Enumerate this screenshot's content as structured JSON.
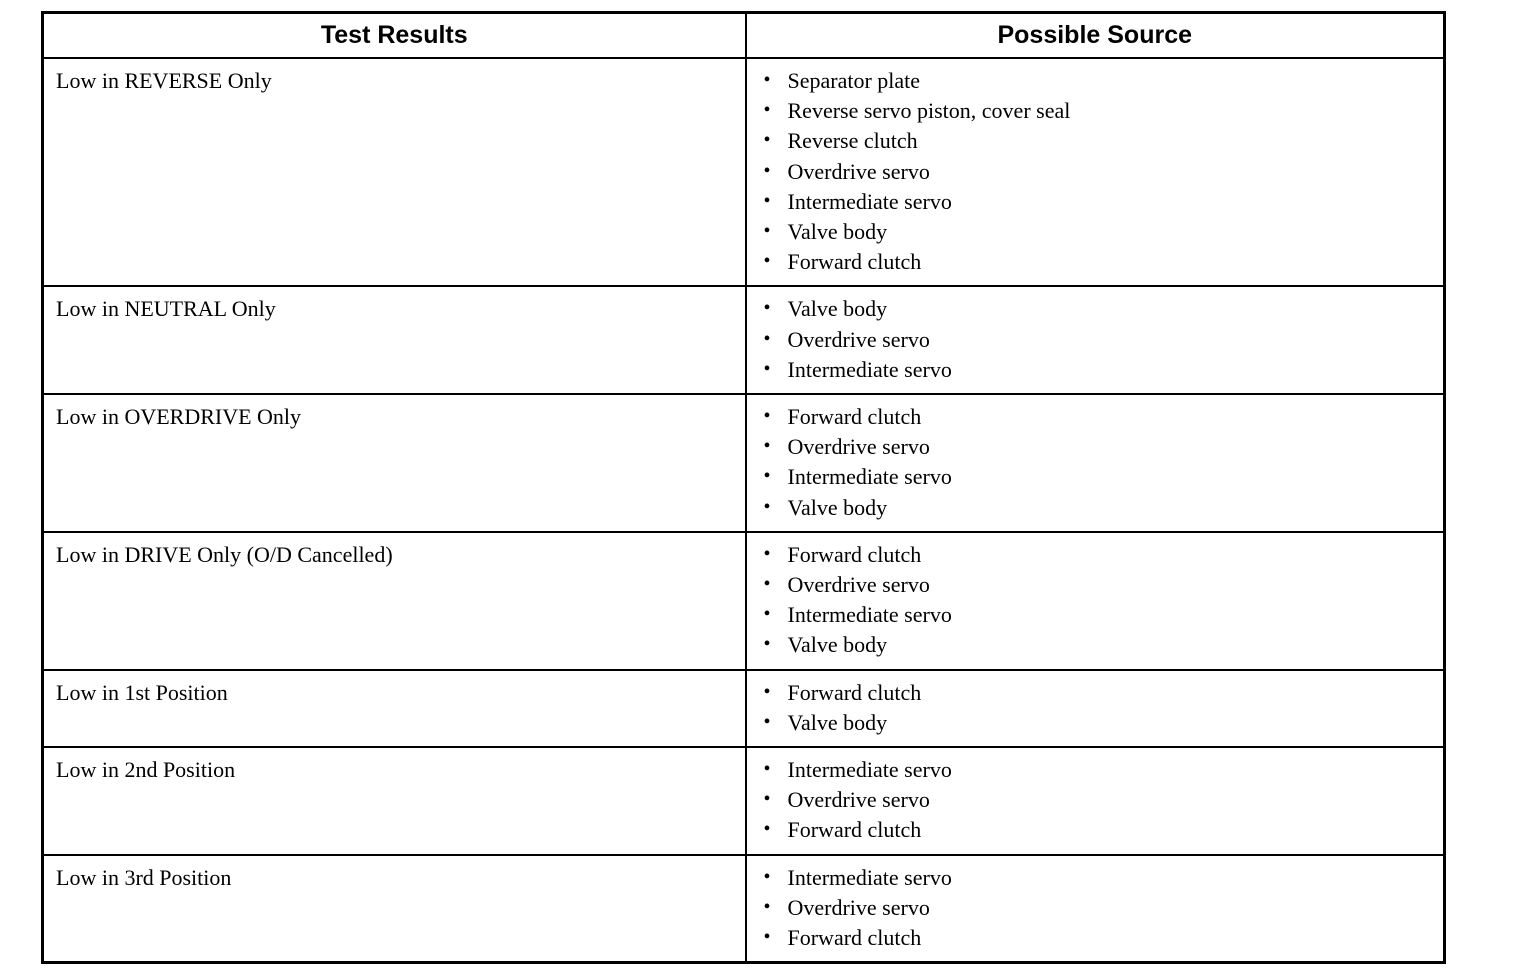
{
  "table": {
    "headers": {
      "test_results": "Test Results",
      "possible_source": "Possible Source"
    },
    "rows": [
      {
        "test_result": "Low in REVERSE Only",
        "possible_sources": [
          "Separator plate",
          "Reverse servo piston, cover seal",
          "Reverse clutch",
          "Overdrive servo",
          "Intermediate servo",
          "Valve body",
          "Forward clutch"
        ]
      },
      {
        "test_result": "Low in NEUTRAL Only",
        "possible_sources": [
          "Valve body",
          "Overdrive servo",
          "Intermediate servo"
        ]
      },
      {
        "test_result": "Low in OVERDRIVE Only",
        "possible_sources": [
          "Forward clutch",
          "Overdrive servo",
          "Intermediate servo",
          "Valve body"
        ]
      },
      {
        "test_result": "Low in DRIVE Only (O/D Cancelled)",
        "possible_sources": [
          "Forward clutch",
          "Overdrive servo",
          "Intermediate servo",
          "Valve body"
        ]
      },
      {
        "test_result": "Low in 1st Position",
        "possible_sources": [
          "Forward clutch",
          "Valve body"
        ]
      },
      {
        "test_result": "Low in 2nd Position",
        "possible_sources": [
          "Intermediate servo",
          "Overdrive servo",
          "Forward clutch"
        ]
      },
      {
        "test_result": "Low in 3rd Position",
        "possible_sources": [
          "Intermediate servo",
          "Overdrive servo",
          "Forward clutch"
        ]
      }
    ]
  },
  "colors": {
    "border": "#000000",
    "background": "#ffffff",
    "text": "#000000"
  }
}
